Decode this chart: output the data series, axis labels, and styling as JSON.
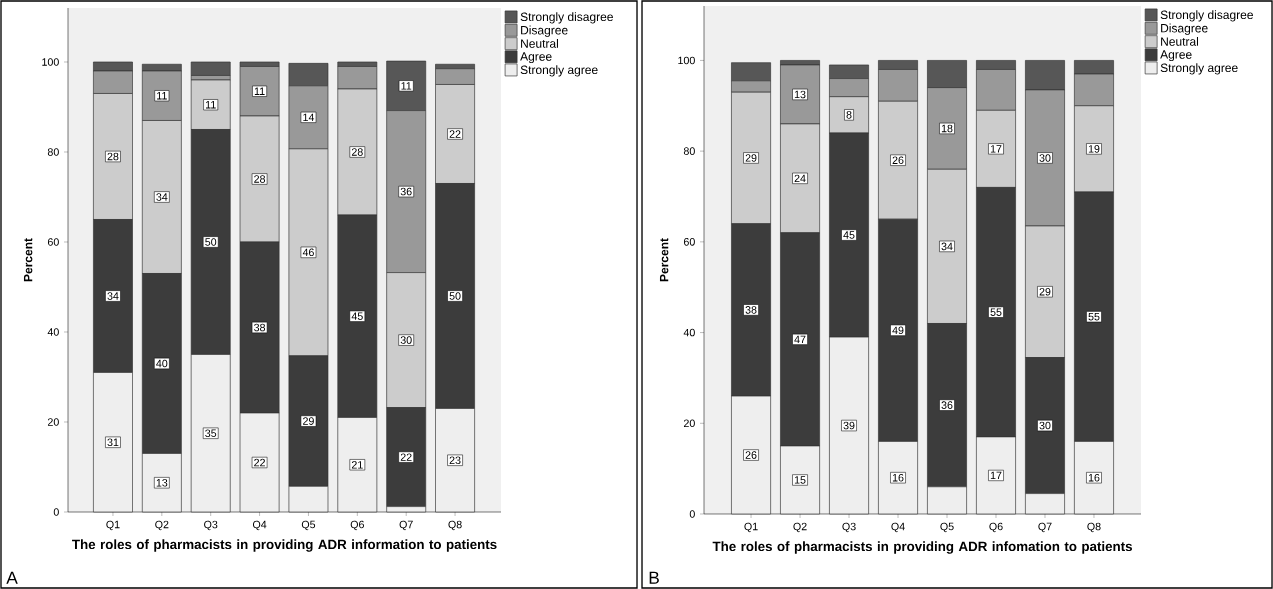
{
  "chart_data": [
    {
      "type": "bar",
      "stacked": true,
      "xlabel": "The roles of pharmacists in providing ADR information to patients",
      "ylabel": "Percent",
      "categories": [
        "Q1",
        "Q2",
        "Q3",
        "Q4",
        "Q5",
        "Q6",
        "Q7",
        "Q8"
      ],
      "ylim": [
        0,
        112
      ],
      "yticks": [
        0,
        20,
        40,
        60,
        80,
        100
      ],
      "legend": "right",
      "annotations": [
        "A"
      ],
      "series": [
        {
          "name": "Strongly agree",
          "color": "#eeeeee",
          "values": [
            31,
            13,
            35,
            22,
            5.7,
            21,
            1.2,
            23
          ],
          "value_labels": [
            "31",
            "13",
            "35",
            "22",
            null,
            "21",
            null,
            "23"
          ]
        },
        {
          "name": "Agree",
          "color": "#3c3c3c",
          "values": [
            34,
            40,
            50,
            38,
            29,
            45,
            22,
            50
          ],
          "value_labels": [
            "34",
            "40",
            "50",
            "38",
            "29",
            "45",
            "22",
            "50"
          ]
        },
        {
          "name": "Neutral",
          "color": "#cccccc",
          "values": [
            28,
            34,
            11,
            28,
            46,
            28,
            30,
            22
          ],
          "value_labels": [
            "28",
            "34",
            "11",
            "28",
            "46",
            "28",
            "30",
            "22"
          ]
        },
        {
          "name": "Disagree",
          "color": "#999999",
          "values": [
            5,
            11,
            1,
            11,
            14,
            5,
            36,
            3.5
          ],
          "value_labels": [
            null,
            "11",
            null,
            "11",
            "14",
            null,
            "36",
            null
          ]
        },
        {
          "name": "Strongly disagree",
          "color": "#575757",
          "values": [
            2,
            1.5,
            3,
            1,
            5,
            1,
            11,
            1
          ],
          "value_labels": [
            null,
            null,
            null,
            null,
            null,
            null,
            "11",
            null
          ]
        }
      ]
    },
    {
      "type": "bar",
      "stacked": true,
      "xlabel": "The roles of pharmacists in providing ADR infomation to patients",
      "ylabel": "Percent",
      "categories": [
        "Q1",
        "Q2",
        "Q3",
        "Q4",
        "Q5",
        "Q6",
        "Q7",
        "Q8"
      ],
      "ylim": [
        0,
        112
      ],
      "yticks": [
        0,
        20,
        40,
        60,
        80,
        100
      ],
      "legend": "right",
      "annotations": [
        "B"
      ],
      "series": [
        {
          "name": "Strongly agree",
          "color": "#eeeeee",
          "values": [
            26,
            15,
            39,
            16,
            6,
            17,
            4.5,
            16
          ],
          "value_labels": [
            "26",
            "15",
            "39",
            "16",
            null,
            "17",
            null,
            "16"
          ]
        },
        {
          "name": "Agree",
          "color": "#3c3c3c",
          "values": [
            38,
            47,
            45,
            49,
            36,
            55,
            30,
            55
          ],
          "value_labels": [
            "38",
            "47",
            "45",
            "49",
            "36",
            "55",
            "30",
            "55"
          ]
        },
        {
          "name": "Neutral",
          "color": "#cccccc",
          "values": [
            29,
            24,
            8,
            26,
            34,
            17,
            29,
            19
          ],
          "value_labels": [
            "29",
            "24",
            "8",
            "26",
            "34",
            "17",
            "29",
            "19"
          ]
        },
        {
          "name": "Disagree",
          "color": "#999999",
          "values": [
            2.5,
            13,
            4,
            7,
            18,
            9,
            30,
            7
          ],
          "value_labels": [
            null,
            "13",
            null,
            null,
            "18",
            null,
            "30",
            null
          ]
        },
        {
          "name": "Strongly disagree",
          "color": "#575757",
          "values": [
            4,
            1,
            3,
            2,
            6,
            2,
            6.5,
            3
          ],
          "value_labels": [
            null,
            null,
            null,
            null,
            null,
            null,
            null,
            null
          ]
        }
      ]
    }
  ]
}
